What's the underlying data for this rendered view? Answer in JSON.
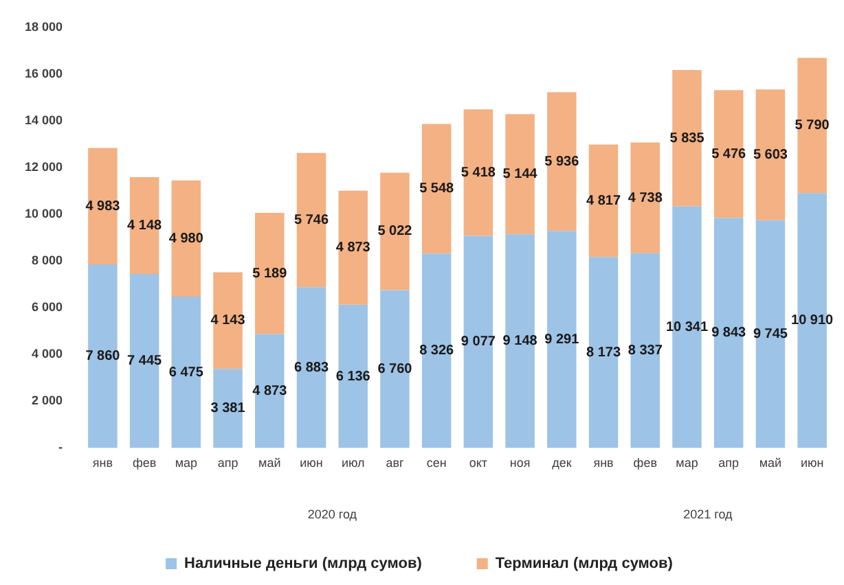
{
  "chart_data": {
    "type": "bar",
    "stacked": true,
    "categories": [
      "янв",
      "фев",
      "мар",
      "апр",
      "май",
      "июн",
      "июл",
      "авг",
      "сен",
      "окт",
      "ноя",
      "дек",
      "янв",
      "фев",
      "мар",
      "апр",
      "май",
      "июн"
    ],
    "series": [
      {
        "name": "Наличные деньги (млрд сумов)",
        "color": "#9dc3e6",
        "values": [
          7860,
          7445,
          6475,
          3381,
          4873,
          6883,
          6136,
          6760,
          8326,
          9077,
          9148,
          9291,
          8173,
          8337,
          10341,
          9843,
          9745,
          10910
        ],
        "value_labels": [
          "7 860",
          "7 445",
          "6 475",
          "3 381",
          "4 873",
          "6 883",
          "6 136",
          "6 760",
          "8 326",
          "9 077",
          "9 148",
          "9 291",
          "8 173",
          "8 337",
          "10 341",
          "9 843",
          "9 745",
          "10 910"
        ]
      },
      {
        "name": "Терминал (млрд сумов)",
        "color": "#f4b183",
        "values": [
          4983,
          4148,
          4980,
          4143,
          5189,
          5746,
          4873,
          5022,
          5548,
          5418,
          5144,
          5936,
          4817,
          4738,
          5835,
          5476,
          5603,
          5790
        ],
        "value_labels": [
          "4 983",
          "4 148",
          "4 980",
          "4 143",
          "5 189",
          "5 746",
          "4 873",
          "5 022",
          "5 548",
          "5 418",
          "5 144",
          "5 936",
          "4 817",
          "4 738",
          "5 835",
          "5 476",
          "5 603",
          "5 790"
        ]
      }
    ],
    "ylim": [
      0,
      18000
    ],
    "yticks": [
      {
        "value": 0,
        "label": "-"
      },
      {
        "value": 2000,
        "label": "2 000"
      },
      {
        "value": 4000,
        "label": "4 000"
      },
      {
        "value": 6000,
        "label": "6 000"
      },
      {
        "value": 8000,
        "label": "8 000"
      },
      {
        "value": 10000,
        "label": "10 000"
      },
      {
        "value": 12000,
        "label": "12 000"
      },
      {
        "value": 14000,
        "label": "14 000"
      },
      {
        "value": 16000,
        "label": "16 000"
      },
      {
        "value": 18000,
        "label": "18 000"
      }
    ],
    "annotations": [
      "2020 год",
      "2021 год"
    ],
    "grid": false,
    "legend": "bottom"
  }
}
